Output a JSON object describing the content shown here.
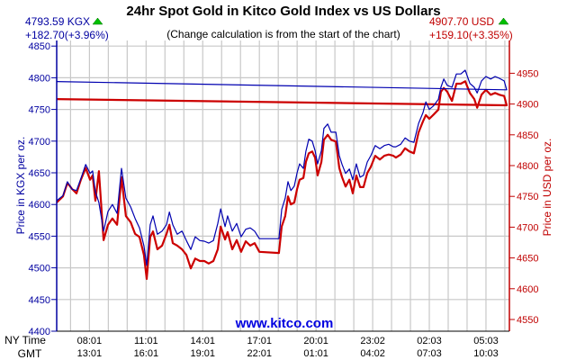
{
  "chart_data": {
    "type": "line",
    "title": "24hr Spot Gold in Kitco Gold Index vs US Dollars",
    "subtitle": "(Change calculation is from the start of the chart)",
    "watermark": "www.kitco.com",
    "left_readout": {
      "price": "4793.59 KGX",
      "change": "+182.70(+3.96%)",
      "direction": "up",
      "color": "#0000a0"
    },
    "right_readout": {
      "price": "4907.70 USD",
      "change": "+159.10(+3.35%)",
      "direction": "up",
      "color": "#c00000"
    },
    "y_left": {
      "label": "Price in KGX per oz.",
      "ticks": [
        4400,
        4450,
        4500,
        4550,
        4600,
        4650,
        4700,
        4750,
        4800,
        4850
      ],
      "color": "#0000a0"
    },
    "y_right": {
      "label": "Price in USD per oz.",
      "ticks": [
        4550,
        4600,
        4650,
        4700,
        4750,
        4800,
        4850,
        4900,
        4950
      ],
      "color": "#c00000"
    },
    "x_axis": {
      "row_labels": [
        "NY Time",
        "GMT"
      ],
      "ny_ticks": [
        "08:01",
        "11:01",
        "14:01",
        "17:01",
        "20:01",
        "23:02",
        "02:03",
        "05:03"
      ],
      "gmt_ticks": [
        "13:01",
        "16:01",
        "19:01",
        "22:01",
        "01:01",
        "04:02",
        "07:03",
        "10:03"
      ]
    },
    "grid": true,
    "up_arrow_color": "#00c000",
    "series": [
      {
        "name": "KGX",
        "axis": "left",
        "color": "#0000b0"
      },
      {
        "name": "USD",
        "axis": "right",
        "color": "#cc0000"
      }
    ],
    "points_columns": [
      "ny_time",
      "KGX",
      "USD"
    ],
    "points": [
      [
        "06:17",
        4606,
        4740
      ],
      [
        "06:37",
        4614,
        4750
      ],
      [
        "06:51",
        4636,
        4772
      ],
      [
        "07:06",
        4624,
        4762
      ],
      [
        "07:20",
        4622,
        4755
      ],
      [
        "07:34",
        4641,
        4777
      ],
      [
        "07:49",
        4663,
        4796
      ],
      [
        "08:03",
        4649,
        4777
      ],
      [
        "08:11",
        4653,
        4784
      ],
      [
        "08:20",
        4620,
        4743
      ],
      [
        "08:31",
        4603,
        4791
      ],
      [
        "08:46",
        4558,
        4679
      ],
      [
        "09:00",
        4589,
        4704
      ],
      [
        "09:14",
        4600,
        4714
      ],
      [
        "09:29",
        4586,
        4704
      ],
      [
        "09:43",
        4657,
        4781
      ],
      [
        "09:57",
        4610,
        4718
      ],
      [
        "10:12",
        4596,
        4708
      ],
      [
        "10:26",
        4578,
        4689
      ],
      [
        "10:40",
        4563,
        4684
      ],
      [
        "10:54",
        4535,
        4655
      ],
      [
        "11:03",
        4504,
        4616
      ],
      [
        "11:14",
        4568,
        4684
      ],
      [
        "11:23",
        4582,
        4693
      ],
      [
        "11:37",
        4553,
        4664
      ],
      [
        "11:52",
        4558,
        4670
      ],
      [
        "12:06",
        4568,
        4689
      ],
      [
        "12:15",
        4588,
        4704
      ],
      [
        "12:26",
        4568,
        4674
      ],
      [
        "12:40",
        4553,
        4670
      ],
      [
        "12:55",
        4558,
        4664
      ],
      [
        "13:09",
        4543,
        4655
      ],
      [
        "13:23",
        4529,
        4633
      ],
      [
        "13:37",
        4549,
        4649
      ],
      [
        "13:52",
        4543,
        4645
      ],
      [
        "14:06",
        4542,
        4645
      ],
      [
        "14:20",
        4539,
        4641
      ],
      [
        "14:35",
        4543,
        4645
      ],
      [
        "14:49",
        4570,
        4664
      ],
      [
        "14:58",
        4593,
        4701
      ],
      [
        "15:12",
        4565,
        4680
      ],
      [
        "15:20",
        4582,
        4692
      ],
      [
        "15:35",
        4558,
        4664
      ],
      [
        "15:49",
        4570,
        4679
      ],
      [
        "16:03",
        4549,
        4660
      ],
      [
        "16:18",
        4561,
        4677
      ],
      [
        "16:32",
        4563,
        4670
      ],
      [
        "16:46",
        4558,
        4674
      ],
      [
        "17:01",
        4546,
        4660
      ],
      [
        "18:03",
        4546,
        4658
      ],
      [
        "18:12",
        4592,
        4701
      ],
      [
        "18:23",
        4610,
        4718
      ],
      [
        "18:32",
        4636,
        4750
      ],
      [
        "18:41",
        4622,
        4737
      ],
      [
        "18:52",
        4629,
        4740
      ],
      [
        "19:01",
        4650,
        4762
      ],
      [
        "19:09",
        4664,
        4777
      ],
      [
        "19:21",
        4657,
        4780
      ],
      [
        "19:29",
        4684,
        4806
      ],
      [
        "19:38",
        4703,
        4820
      ],
      [
        "19:49",
        4700,
        4823
      ],
      [
        "19:58",
        4685,
        4813
      ],
      [
        "20:06",
        4664,
        4784
      ],
      [
        "20:18",
        4685,
        4806
      ],
      [
        "20:26",
        4720,
        4842
      ],
      [
        "20:38",
        4727,
        4850
      ],
      [
        "20:49",
        4714,
        4842
      ],
      [
        "21:04",
        4714,
        4839
      ],
      [
        "21:15",
        4677,
        4796
      ],
      [
        "21:24",
        4663,
        4781
      ],
      [
        "21:35",
        4649,
        4766
      ],
      [
        "21:47",
        4656,
        4777
      ],
      [
        "21:58",
        4639,
        4755
      ],
      [
        "22:09",
        4664,
        4784
      ],
      [
        "22:21",
        4643,
        4765
      ],
      [
        "22:32",
        4646,
        4765
      ],
      [
        "22:44",
        4667,
        4788
      ],
      [
        "22:55",
        4677,
        4798
      ],
      [
        "23:09",
        4693,
        4816
      ],
      [
        "23:24",
        4688,
        4810
      ],
      [
        "23:38",
        4693,
        4816
      ],
      [
        "23:52",
        4695,
        4818
      ],
      [
        "00:07",
        4691,
        4816
      ],
      [
        "00:15",
        4691,
        4813
      ],
      [
        "00:30",
        4695,
        4818
      ],
      [
        "00:44",
        4705,
        4828
      ],
      [
        "00:58",
        4700,
        4823
      ],
      [
        "01:12",
        4698,
        4820
      ],
      [
        "01:27",
        4728,
        4854
      ],
      [
        "01:41",
        4745,
        4872
      ],
      [
        "01:50",
        4762,
        4882
      ],
      [
        "02:01",
        4750,
        4876
      ],
      [
        "02:15",
        4756,
        4883
      ],
      [
        "02:30",
        4766,
        4891
      ],
      [
        "02:38",
        4785,
        4920
      ],
      [
        "02:47",
        4798,
        4926
      ],
      [
        "02:58",
        4788,
        4920
      ],
      [
        "03:13",
        4785,
        4905
      ],
      [
        "03:27",
        4806,
        4933
      ],
      [
        "03:41",
        4806,
        4933
      ],
      [
        "03:55",
        4812,
        4937
      ],
      [
        "04:10",
        4791,
        4918
      ],
      [
        "04:24",
        4785,
        4908
      ],
      [
        "04:33",
        4776,
        4894
      ],
      [
        "04:47",
        4795,
        4915
      ],
      [
        "05:01",
        4802,
        4923
      ],
      [
        "05:16",
        4798,
        4915
      ],
      [
        "05:30",
        4802,
        4918
      ],
      [
        "05:44",
        4799,
        4915
      ],
      [
        "05:59",
        4795,
        4913
      ],
      [
        "06:07",
        4781,
        4898
      ],
      [
        "06:16",
        4794,
        4908
      ]
    ]
  }
}
